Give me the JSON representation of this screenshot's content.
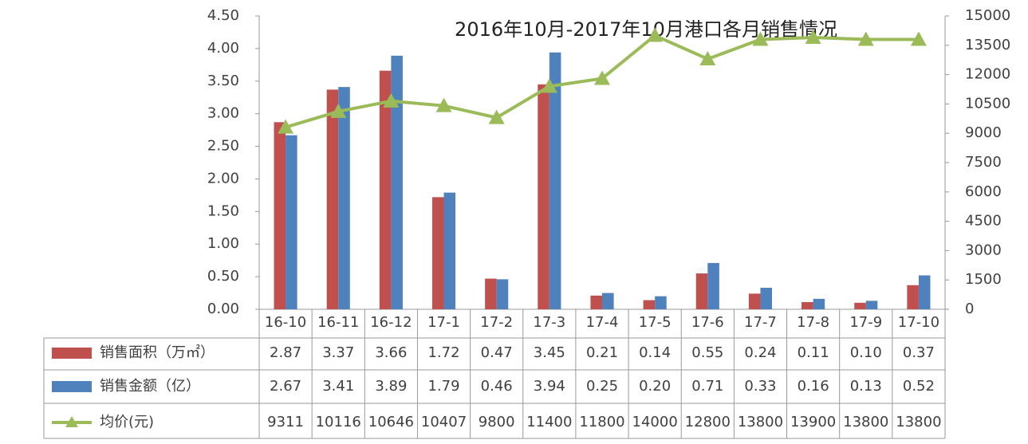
{
  "chart_data": {
    "type": "bar-line-table",
    "title": "2016年10月-2017年10月港口各月销售情况",
    "categories": [
      "16-10",
      "16-11",
      "16-12",
      "17-1",
      "17-2",
      "17-3",
      "17-4",
      "17-5",
      "17-6",
      "17-7",
      "17-8",
      "17-9",
      "17-10"
    ],
    "series": [
      {
        "name": "销售面积（万㎡）",
        "color": "#c0504d",
        "values": [
          2.87,
          3.37,
          3.66,
          1.72,
          0.47,
          3.45,
          0.21,
          0.14,
          0.55,
          0.24,
          0.11,
          0.1,
          0.37
        ],
        "value_labels": [
          "2.87",
          "3.37",
          "3.66",
          "1.72",
          "0.47",
          "3.45",
          "0.21",
          "0.14",
          "0.55",
          "0.24",
          "0.11",
          "0.10",
          "0.37"
        ]
      },
      {
        "name": "销售金额（亿）",
        "color": "#4f81bd",
        "values": [
          2.67,
          3.41,
          3.89,
          1.79,
          0.46,
          3.94,
          0.25,
          0.2,
          0.71,
          0.33,
          0.16,
          0.13,
          0.52
        ],
        "value_labels": [
          "2.67",
          "3.41",
          "3.89",
          "1.79",
          "0.46",
          "3.94",
          "0.25",
          "0.20",
          "0.71",
          "0.33",
          "0.16",
          "0.13",
          "0.52"
        ]
      },
      {
        "name": "均价(元)",
        "color": "#9bbb59",
        "axis": "y2",
        "values": [
          9311,
          10116,
          10646,
          10407,
          9800,
          11400,
          11800,
          14000,
          12800,
          13800,
          13900,
          13800,
          13800
        ]
      }
    ],
    "ylim": [
      0,
      4.5
    ],
    "yticks": [
      {
        "value": 0,
        "label": "0.00"
      },
      {
        "value": 0.5,
        "label": "0.50"
      },
      {
        "value": 1,
        "label": "1.00"
      },
      {
        "value": 1.5,
        "label": "1.50"
      },
      {
        "value": 2,
        "label": "2.00"
      },
      {
        "value": 2.5,
        "label": "2.50"
      },
      {
        "value": 3,
        "label": "3.00"
      },
      {
        "value": 3.5,
        "label": "3.50"
      },
      {
        "value": 4,
        "label": "4.00"
      },
      {
        "value": 4.5,
        "label": "4.50"
      }
    ],
    "y2lim": [
      0,
      15000
    ],
    "y2ticks": [
      0,
      1500,
      3000,
      4500,
      6000,
      7500,
      9000,
      10500,
      12000,
      13500,
      15000
    ]
  }
}
